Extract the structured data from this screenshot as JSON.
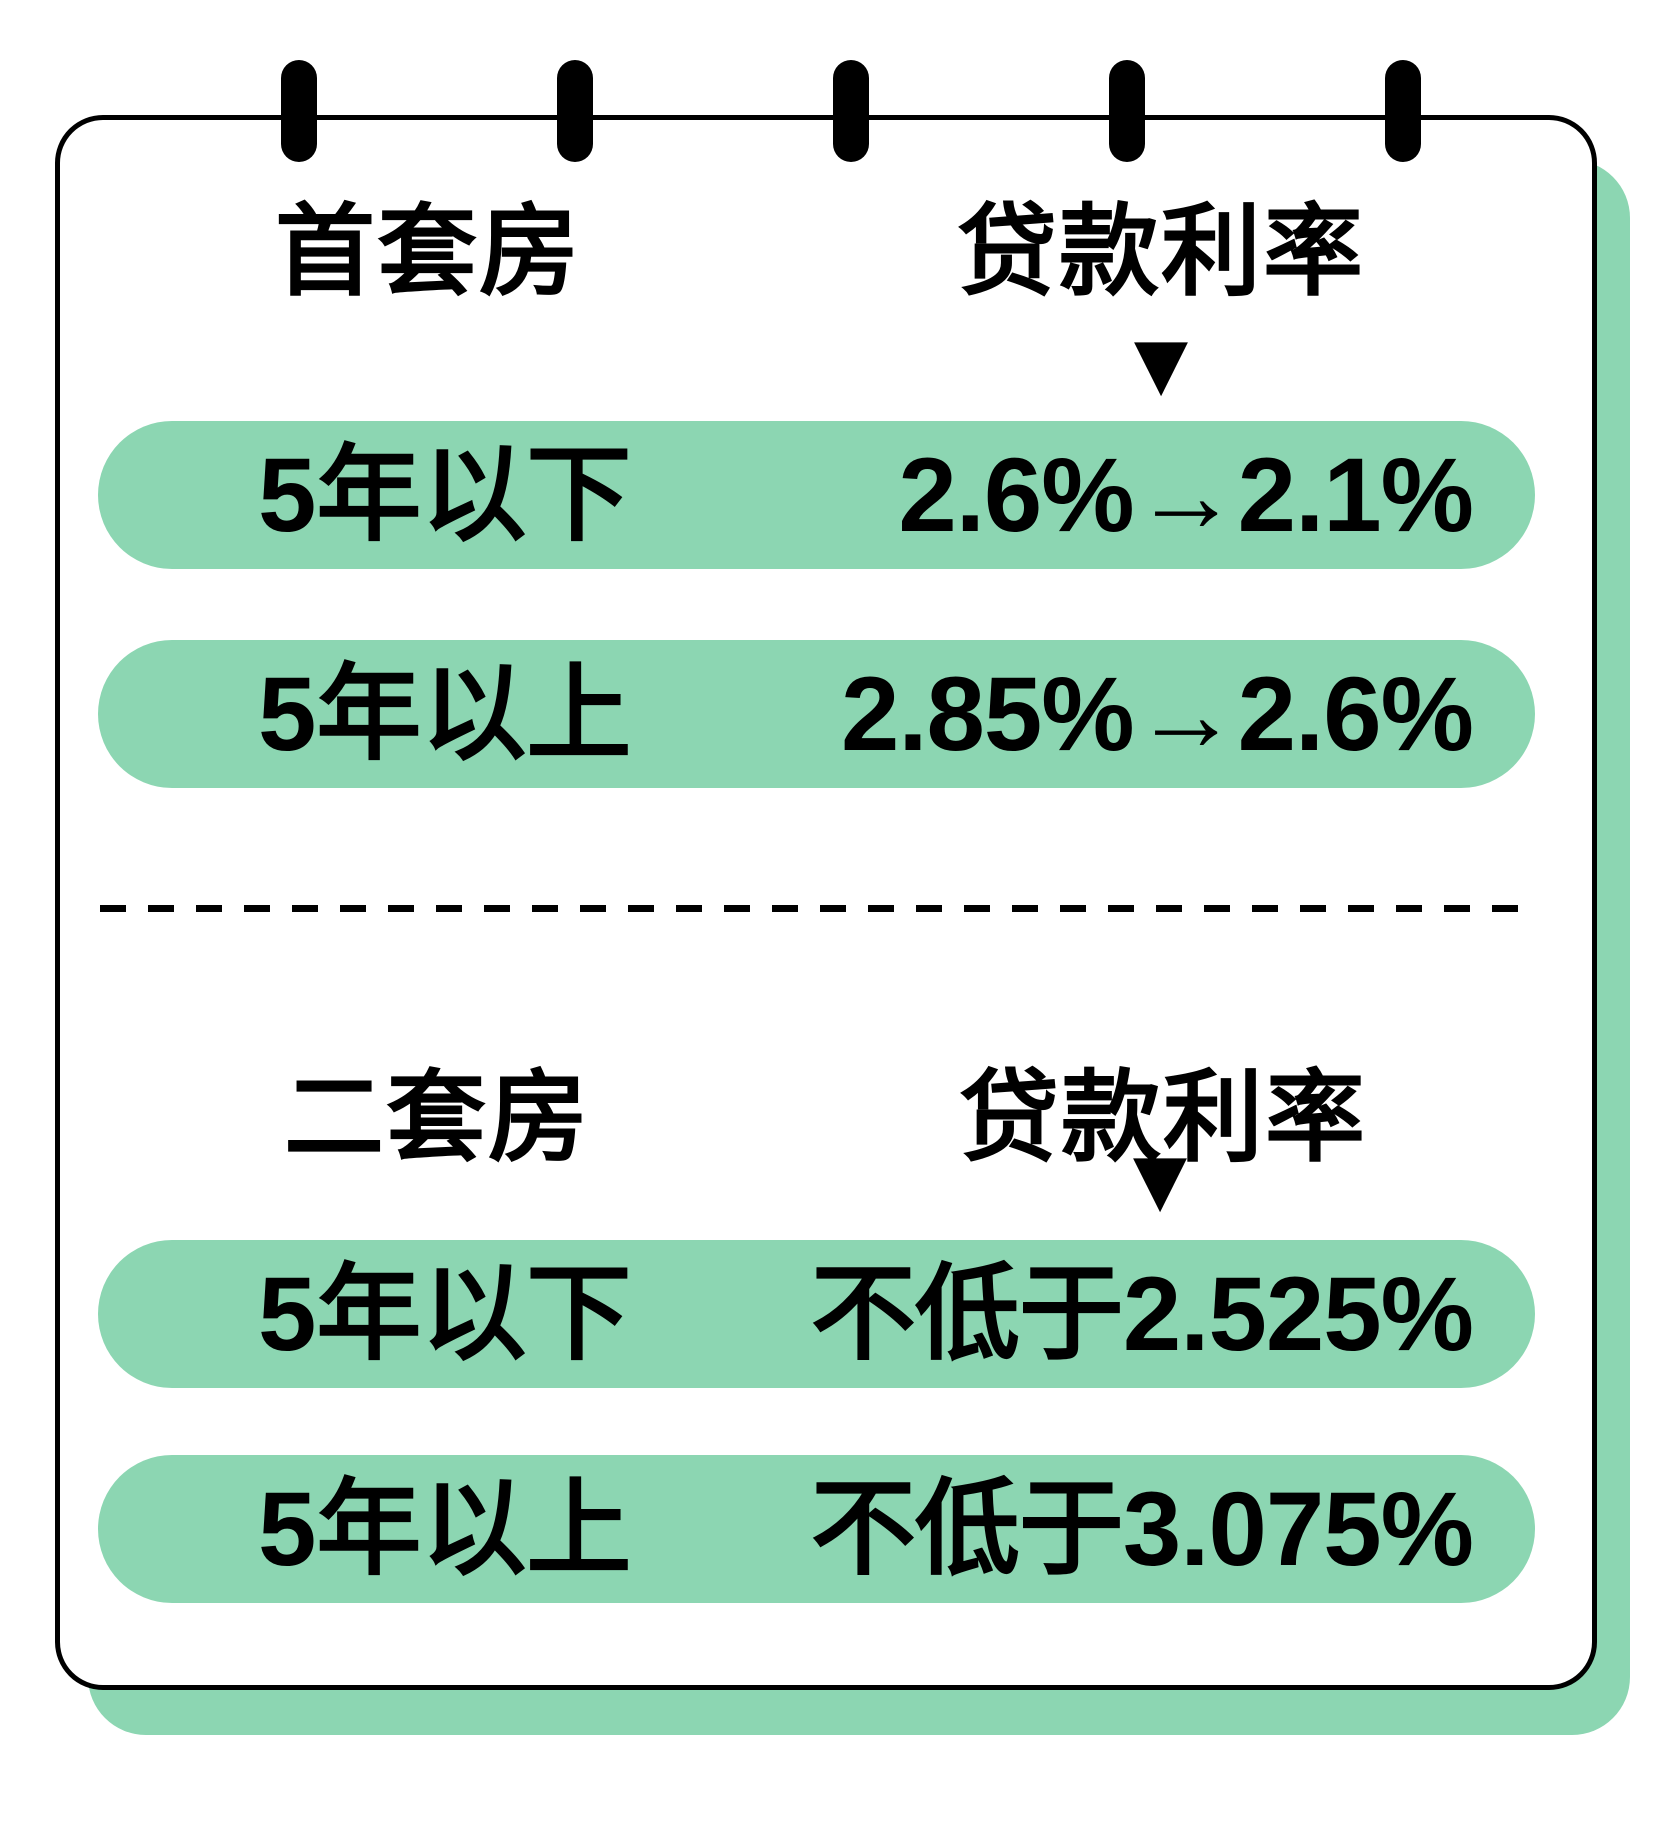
{
  "colors": {
    "mint": "#8CD6B2",
    "ink": "#000000",
    "paper": "#ffffff"
  },
  "card": {
    "ring_count": 5
  },
  "sections": [
    {
      "category_label": "首套房",
      "rate_header": "贷款利率",
      "arrow_icon": "▼",
      "rows": [
        {
          "term": "5年以下",
          "rate": "2.6%→2.1%"
        },
        {
          "term": "5年以上",
          "rate": "2.85%→2.6%"
        }
      ]
    },
    {
      "category_label": "二套房",
      "rate_header": "贷款利率",
      "arrow_icon": "▼",
      "rows": [
        {
          "term": "5年以下",
          "rate": "不低于2.525%"
        },
        {
          "term": "5年以上",
          "rate": "不低于3.075%"
        }
      ]
    }
  ],
  "chart_data": {
    "type": "table",
    "tables": [
      {
        "title": "首套房",
        "value_header": "贷款利率",
        "rows": [
          [
            "5年以下",
            "2.6%→2.1%"
          ],
          [
            "5年以上",
            "2.85%→2.6%"
          ]
        ]
      },
      {
        "title": "二套房",
        "value_header": "贷款利率",
        "rows": [
          [
            "5年以下",
            "不低于2.525%"
          ],
          [
            "5年以上",
            "不低于3.075%"
          ]
        ]
      }
    ],
    "numeric": {
      "first_home": {
        "under_5_years": {
          "old_rate_pct": 2.6,
          "new_rate_pct": 2.1
        },
        "over_5_years": {
          "old_rate_pct": 2.85,
          "new_rate_pct": 2.6
        }
      },
      "second_home": {
        "under_5_years_min_pct": 2.525,
        "over_5_years_min_pct": 3.075
      }
    }
  }
}
